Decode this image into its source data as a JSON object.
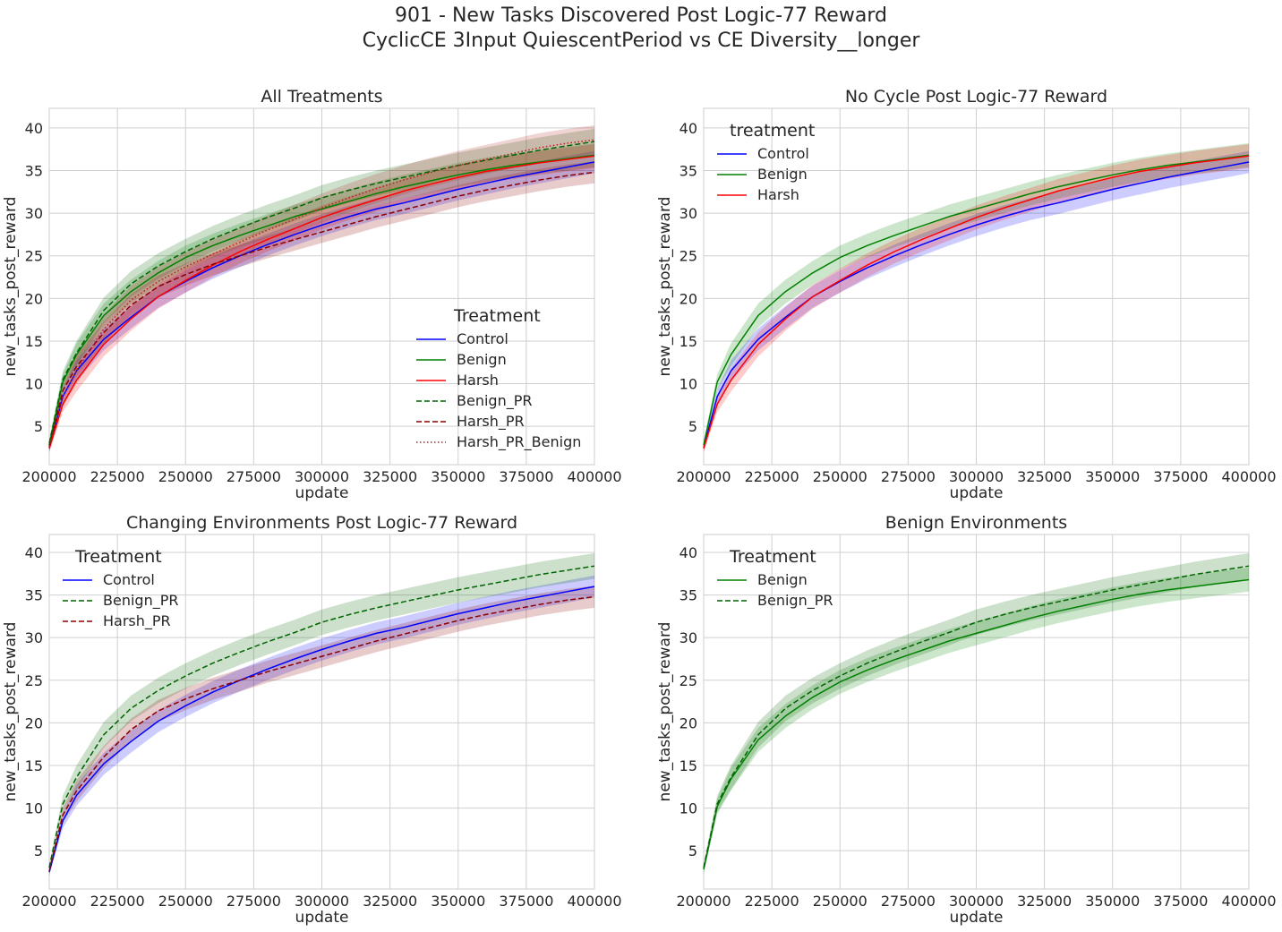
{
  "figure": {
    "title_line1": "901 - New Tasks Discovered Post Logic-77 Reward",
    "title_line2": "CyclicCE 3Input QuiescentPeriod vs CE Diversity__longer"
  },
  "chart_data": [
    {
      "type": "line",
      "title": "All Treatments",
      "xlabel": "update",
      "ylabel": "new_tasks_post_reward",
      "xlim": [
        200000,
        400000
      ],
      "ylim": [
        0.5,
        42.3
      ],
      "xticks": [
        200000,
        225000,
        250000,
        275000,
        300000,
        325000,
        350000,
        375000,
        400000
      ],
      "yticks": [
        5,
        10,
        15,
        20,
        25,
        30,
        35,
        40
      ],
      "grid": true,
      "legend": {
        "title": "Treatment",
        "location": "lower-right"
      },
      "x": [
        200000,
        205000,
        210000,
        220000,
        230000,
        240000,
        250000,
        260000,
        270000,
        280000,
        290000,
        300000,
        310000,
        320000,
        330000,
        340000,
        350000,
        360000,
        370000,
        380000,
        390000,
        400000
      ],
      "series": [
        {
          "name": "Control",
          "color": "#0000ff",
          "style": "solid",
          "band": 1.3,
          "values": [
            2.5,
            8.5,
            11.5,
            15.2,
            17.8,
            20.2,
            22.0,
            23.6,
            25.0,
            26.3,
            27.5,
            28.6,
            29.6,
            30.5,
            31.2,
            32.0,
            32.8,
            33.5,
            34.2,
            34.8,
            35.4,
            36.0
          ]
        },
        {
          "name": "Benign",
          "color": "#008000",
          "style": "solid",
          "band": 1.4,
          "values": [
            2.8,
            10.2,
            13.4,
            18.0,
            20.8,
            23.0,
            24.8,
            26.2,
            27.4,
            28.5,
            29.6,
            30.5,
            31.4,
            32.3,
            33.1,
            33.8,
            34.5,
            35.1,
            35.6,
            36.0,
            36.4,
            36.8
          ]
        },
        {
          "name": "Harsh",
          "color": "#ff0000",
          "style": "solid",
          "band": 1.4,
          "values": [
            2.4,
            7.6,
            10.4,
            14.6,
            17.6,
            20.2,
            22.1,
            23.9,
            25.5,
            26.9,
            28.2,
            29.5,
            30.6,
            31.6,
            32.6,
            33.4,
            34.2,
            34.9,
            35.4,
            35.9,
            36.3,
            36.7
          ]
        },
        {
          "name": "Benign_PR",
          "color": "#006400",
          "style": "dashed",
          "band": 1.5,
          "values": [
            3.0,
            10.5,
            13.6,
            18.6,
            21.7,
            23.8,
            25.5,
            27.0,
            28.3,
            29.5,
            30.6,
            31.8,
            32.7,
            33.5,
            34.2,
            34.9,
            35.6,
            36.2,
            36.8,
            37.4,
            37.9,
            38.4
          ]
        },
        {
          "name": "Harsh_PR",
          "color": "#8b0000",
          "style": "dashed",
          "band": 1.3,
          "values": [
            2.6,
            9.2,
            12.0,
            16.0,
            19.2,
            21.4,
            22.8,
            24.0,
            25.0,
            26.0,
            26.9,
            27.8,
            28.7,
            29.6,
            30.4,
            31.2,
            32.0,
            32.7,
            33.3,
            33.9,
            34.4,
            34.8
          ]
        },
        {
          "name": "Harsh_PR_Benign",
          "color": "#b22222",
          "style": "dotted",
          "band": 1.7,
          "values": [
            2.6,
            8.4,
            11.6,
            16.4,
            19.8,
            22.0,
            23.7,
            25.2,
            26.6,
            28.0,
            29.3,
            30.6,
            31.8,
            32.9,
            33.9,
            34.8,
            35.6,
            36.3,
            37.0,
            37.7,
            38.2,
            38.6
          ]
        }
      ]
    },
    {
      "type": "line",
      "title": "No Cycle Post Logic-77 Reward",
      "xlabel": "update",
      "ylabel": "new_tasks_post_reward",
      "xlim": [
        200000,
        400000
      ],
      "ylim": [
        0.5,
        42.3
      ],
      "xticks": [
        200000,
        225000,
        250000,
        275000,
        300000,
        325000,
        350000,
        375000,
        400000
      ],
      "yticks": [
        5,
        10,
        15,
        20,
        25,
        30,
        35,
        40
      ],
      "grid": true,
      "legend": {
        "title": "treatment",
        "location": "top-left"
      },
      "x": [
        200000,
        205000,
        210000,
        220000,
        230000,
        240000,
        250000,
        260000,
        270000,
        280000,
        290000,
        300000,
        310000,
        320000,
        330000,
        340000,
        350000,
        360000,
        370000,
        380000,
        390000,
        400000
      ],
      "series": [
        {
          "name": "Control",
          "color": "#0000ff",
          "style": "solid",
          "band": 1.3,
          "values": [
            2.5,
            8.5,
            11.5,
            15.2,
            17.8,
            20.2,
            22.0,
            23.6,
            25.0,
            26.3,
            27.5,
            28.6,
            29.6,
            30.5,
            31.2,
            32.0,
            32.8,
            33.5,
            34.2,
            34.8,
            35.4,
            36.0
          ]
        },
        {
          "name": "Benign",
          "color": "#008000",
          "style": "solid",
          "band": 1.4,
          "values": [
            2.8,
            10.2,
            13.4,
            18.0,
            20.8,
            23.0,
            24.8,
            26.2,
            27.4,
            28.5,
            29.6,
            30.5,
            31.4,
            32.3,
            33.1,
            33.8,
            34.5,
            35.1,
            35.6,
            36.0,
            36.4,
            36.8
          ]
        },
        {
          "name": "Harsh",
          "color": "#ff0000",
          "style": "solid",
          "band": 1.4,
          "values": [
            2.4,
            7.6,
            10.4,
            14.6,
            17.6,
            20.2,
            22.1,
            23.9,
            25.5,
            26.9,
            28.2,
            29.5,
            30.6,
            31.6,
            32.6,
            33.4,
            34.2,
            34.9,
            35.4,
            35.9,
            36.3,
            36.7
          ]
        }
      ]
    },
    {
      "type": "line",
      "title": "Changing Environments Post Logic-77 Reward",
      "xlabel": "update",
      "ylabel": "new_tasks_post_reward",
      "xlim": [
        200000,
        400000
      ],
      "ylim": [
        0.5,
        42.1
      ],
      "xticks": [
        200000,
        225000,
        250000,
        275000,
        300000,
        325000,
        350000,
        375000,
        400000
      ],
      "yticks": [
        5,
        10,
        15,
        20,
        25,
        30,
        35,
        40
      ],
      "grid": true,
      "legend": {
        "title": "Treatment",
        "location": "top-left"
      },
      "x": [
        200000,
        205000,
        210000,
        220000,
        230000,
        240000,
        250000,
        260000,
        270000,
        280000,
        290000,
        300000,
        310000,
        320000,
        330000,
        340000,
        350000,
        360000,
        370000,
        380000,
        390000,
        400000
      ],
      "series": [
        {
          "name": "Control",
          "color": "#0000ff",
          "style": "solid",
          "band": 1.3,
          "values": [
            2.5,
            8.5,
            11.5,
            15.2,
            17.8,
            20.2,
            22.0,
            23.6,
            25.0,
            26.3,
            27.5,
            28.6,
            29.6,
            30.5,
            31.2,
            32.0,
            32.8,
            33.5,
            34.2,
            34.8,
            35.4,
            36.0
          ]
        },
        {
          "name": "Benign_PR",
          "color": "#006400",
          "style": "dashed",
          "band": 1.5,
          "values": [
            3.0,
            10.5,
            13.6,
            18.6,
            21.7,
            23.8,
            25.5,
            27.0,
            28.3,
            29.5,
            30.6,
            31.8,
            32.7,
            33.5,
            34.2,
            34.9,
            35.6,
            36.2,
            36.8,
            37.4,
            37.9,
            38.4
          ]
        },
        {
          "name": "Harsh_PR",
          "color": "#8b0000",
          "style": "dashed",
          "band": 1.3,
          "values": [
            2.6,
            9.2,
            12.0,
            16.0,
            19.2,
            21.4,
            22.8,
            24.0,
            25.0,
            26.0,
            26.9,
            27.8,
            28.7,
            29.6,
            30.4,
            31.2,
            32.0,
            32.7,
            33.3,
            33.9,
            34.4,
            34.8
          ]
        }
      ]
    },
    {
      "type": "line",
      "title": "Benign Environments",
      "xlabel": "update",
      "ylabel": "new_tasks_post_reward",
      "xlim": [
        200000,
        400000
      ],
      "ylim": [
        0.5,
        42.1
      ],
      "xticks": [
        200000,
        225000,
        250000,
        275000,
        300000,
        325000,
        350000,
        375000,
        400000
      ],
      "yticks": [
        5,
        10,
        15,
        20,
        25,
        30,
        35,
        40
      ],
      "grid": true,
      "legend": {
        "title": "Treatment",
        "location": "top-left"
      },
      "x": [
        200000,
        205000,
        210000,
        220000,
        230000,
        240000,
        250000,
        260000,
        270000,
        280000,
        290000,
        300000,
        310000,
        320000,
        330000,
        340000,
        350000,
        360000,
        370000,
        380000,
        390000,
        400000
      ],
      "series": [
        {
          "name": "Benign",
          "color": "#008000",
          "style": "solid",
          "band": 1.4,
          "values": [
            2.8,
            10.2,
            13.4,
            18.0,
            20.8,
            23.0,
            24.8,
            26.2,
            27.4,
            28.5,
            29.6,
            30.5,
            31.4,
            32.3,
            33.1,
            33.8,
            34.5,
            35.1,
            35.6,
            36.0,
            36.4,
            36.8
          ]
        },
        {
          "name": "Benign_PR",
          "color": "#006400",
          "style": "dashed",
          "band": 1.5,
          "values": [
            3.0,
            10.5,
            13.6,
            18.6,
            21.7,
            23.8,
            25.5,
            27.0,
            28.3,
            29.5,
            30.6,
            31.8,
            32.7,
            33.5,
            34.2,
            34.9,
            35.6,
            36.2,
            36.8,
            37.4,
            37.9,
            38.4
          ]
        }
      ]
    }
  ]
}
